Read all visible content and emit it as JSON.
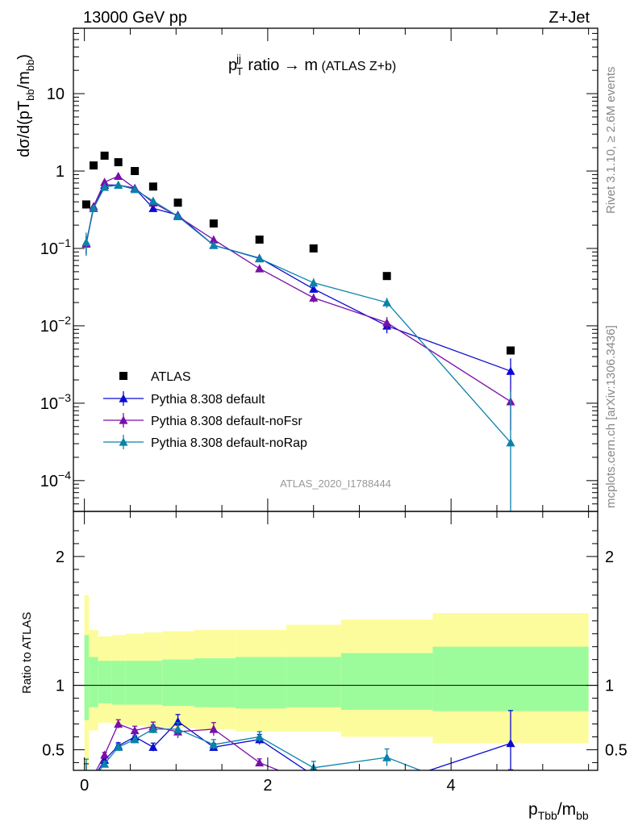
{
  "header": {
    "left": "13000 GeV pp",
    "right": "Z+Jet",
    "watermark": "ATLAS_2020_I1788444",
    "side_top": "Rivet 3.1.10, ≥ 2.6M events",
    "side_bottom": "mcplots.cern.ch [arXiv:1306.3436]"
  },
  "main_title": {
    "p": "p",
    "sub": "T",
    "sup": "jj",
    "rest": " ratio → m",
    "small": " (ATLAS Z+b)"
  },
  "ylabel_top": {
    "a": "dσ/d(pT",
    "sub": "bb",
    "b": "/m",
    "sub2": "bb",
    "c": ")"
  },
  "ylabel_bottom": "Ratio to ATLAS",
  "xlabel": {
    "a": "p",
    "sub": "Tbb",
    "b": "/m",
    "sub2": "bb"
  },
  "top_ticks": [
    "10",
    "1",
    "10",
    "10",
    "10",
    "10"
  ],
  "top_ticks_exp": [
    "",
    "",
    "−1",
    "−2",
    "−3",
    "−4"
  ],
  "ratio_ticks": [
    "2",
    "1",
    "0.5"
  ],
  "x_ticks": [
    "0",
    "2",
    "4"
  ],
  "legend": [
    "ATLAS",
    "Pythia 8.308 default",
    "Pythia 8.308 default-noFsr",
    "Pythia 8.308 default-noRap"
  ],
  "colors": {
    "atlas": "#000000",
    "default": "#0a0ad2",
    "noFsr": "#7a0fa8",
    "noRap": "#0a82aa",
    "band_green": "#9cfc9c",
    "band_yellow": "#fcfc9c"
  },
  "chart_data": {
    "type": "scatter",
    "x_scale": "linear",
    "y_scale": "log",
    "xlim": [
      -0.12,
      5.6
    ],
    "ylim": [
      4e-05,
      70
    ],
    "ratio_ylim": [
      0.34,
      2.35
    ],
    "bin_edges": [
      0,
      0.05,
      0.15,
      0.3,
      0.45,
      0.65,
      0.85,
      1.2,
      1.65,
      2.2,
      2.8,
      3.8,
      5.5
    ],
    "x": [
      0.02,
      0.1,
      0.22,
      0.37,
      0.55,
      0.75,
      1.02,
      1.41,
      1.91,
      2.5,
      3.3,
      4.65
    ],
    "series": [
      {
        "name": "ATLAS",
        "values": [
          0.37,
          1.18,
          1.58,
          1.3,
          1.0,
          0.63,
          0.39,
          0.21,
          0.13,
          0.1,
          0.044,
          0.0048
        ]
      },
      {
        "name": "Pythia 8.308 default",
        "values": [
          0.115,
          0.33,
          0.66,
          0.66,
          0.6,
          0.33,
          0.27,
          0.11,
          0.075,
          0.03,
          0.01,
          0.0026
        ],
        "errors": [
          0.03,
          0.03,
          0.03,
          0.03,
          0.03,
          0.02,
          0.02,
          0.006,
          0.005,
          0.003,
          0.002,
          0.0012
        ],
        "ratio": [
          0.31,
          0.28,
          0.42,
          0.53,
          0.6,
          0.52,
          0.72,
          0.52,
          0.58,
          0.3,
          0.23,
          0.55
        ]
      },
      {
        "name": "Pythia 8.308 default-noFsr",
        "values": [
          0.115,
          0.35,
          0.72,
          0.86,
          0.6,
          0.39,
          0.26,
          0.13,
          0.055,
          0.023,
          0.011,
          0.00105
        ],
        "errors": [
          0.03,
          0.03,
          0.03,
          0.04,
          0.03,
          0.02,
          0.02,
          0.01,
          0.004,
          0.003,
          0.002,
          0.0006
        ],
        "ratio": [
          0.31,
          0.3,
          0.46,
          0.7,
          0.65,
          0.68,
          0.64,
          0.66,
          0.4,
          0.23,
          0.25,
          0.22
        ]
      },
      {
        "name": "Pythia 8.308 default-noRap",
        "values": [
          0.12,
          0.33,
          0.62,
          0.66,
          0.58,
          0.41,
          0.26,
          0.11,
          0.074,
          0.036,
          0.02,
          0.00031
        ],
        "errors": [
          0.04,
          0.03,
          0.03,
          0.03,
          0.03,
          0.02,
          0.02,
          0.008,
          0.005,
          0.005,
          0.003,
          0.0012
        ],
        "ratio": [
          0.32,
          0.28,
          0.39,
          0.52,
          0.58,
          0.66,
          0.66,
          0.54,
          0.6,
          0.36,
          0.44,
          0.07
        ]
      }
    ],
    "band_inner": [
      1.39,
      1.22,
      1.19,
      1.19,
      1.19,
      1.19,
      1.2,
      1.21,
      1.22,
      1.22,
      1.25,
      1.3
    ],
    "band_inner_low": [
      0.73,
      0.83,
      0.86,
      0.85,
      0.85,
      0.85,
      0.84,
      0.83,
      0.82,
      0.83,
      0.81,
      0.8
    ],
    "band_outer": [
      1.7,
      1.43,
      1.38,
      1.39,
      1.4,
      1.41,
      1.42,
      1.43,
      1.43,
      1.47,
      1.51,
      1.56
    ],
    "band_outer_low": [
      0.35,
      0.65,
      0.71,
      0.7,
      0.69,
      0.68,
      0.67,
      0.66,
      0.64,
      0.64,
      0.6,
      0.55
    ]
  }
}
